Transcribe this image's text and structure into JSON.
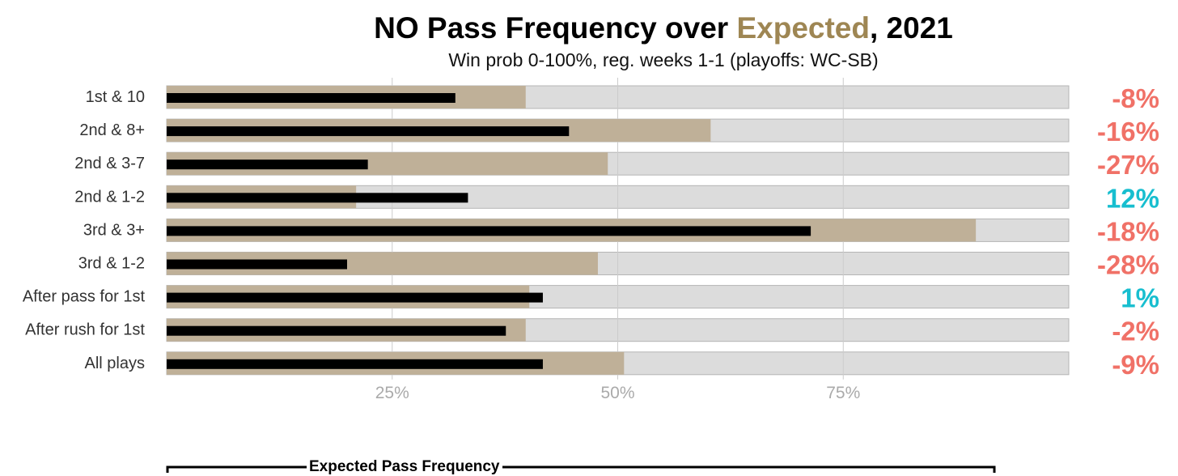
{
  "title": {
    "prefix": "NO Pass Frequency over ",
    "highlight": "Expected",
    "suffix": ", 2021",
    "highlight_color": "#9e8653"
  },
  "subtitle": "Win prob 0-100%, reg. weeks 1-1 (playoffs: WC-SB)",
  "legend": {
    "title": "Expected Pass Frequency"
  },
  "colors": {
    "track": "#dcdcdc",
    "expected": "#bfb098",
    "actual": "#000000",
    "negative": "#f07167",
    "positive": "#17becf",
    "grid": "#cccccc",
    "tick": "#aaaaaa",
    "label": "#333333"
  },
  "chart_data": {
    "type": "bar",
    "orientation": "horizontal",
    "categories": [
      "1st & 10",
      "2nd & 8+",
      "2nd & 3-7",
      "2nd & 1-2",
      "3rd & 3+",
      "3rd & 1-2",
      "After pass for 1st",
      "After rush for 1st",
      "All plays"
    ],
    "series": [
      {
        "name": "Expected Pass Frequency",
        "values": [
          39.8,
          60.3,
          48.9,
          21.0,
          89.7,
          47.8,
          40.2,
          39.8,
          50.7
        ]
      },
      {
        "values": [
          32.0,
          44.6,
          22.3,
          33.4,
          71.4,
          20.0,
          41.7,
          37.6,
          41.7
        ]
      }
    ],
    "pass_rate_over_expected_labels": [
      "-8%",
      "-16%",
      "-27%",
      "12%",
      "-18%",
      "-28%",
      "1%",
      "-2%",
      "-9%"
    ],
    "xlim": [
      0,
      100
    ],
    "x_ticks": [
      25,
      50,
      75
    ],
    "x_tick_labels": [
      "25%",
      "50%",
      "75%"
    ],
    "grid": true
  }
}
